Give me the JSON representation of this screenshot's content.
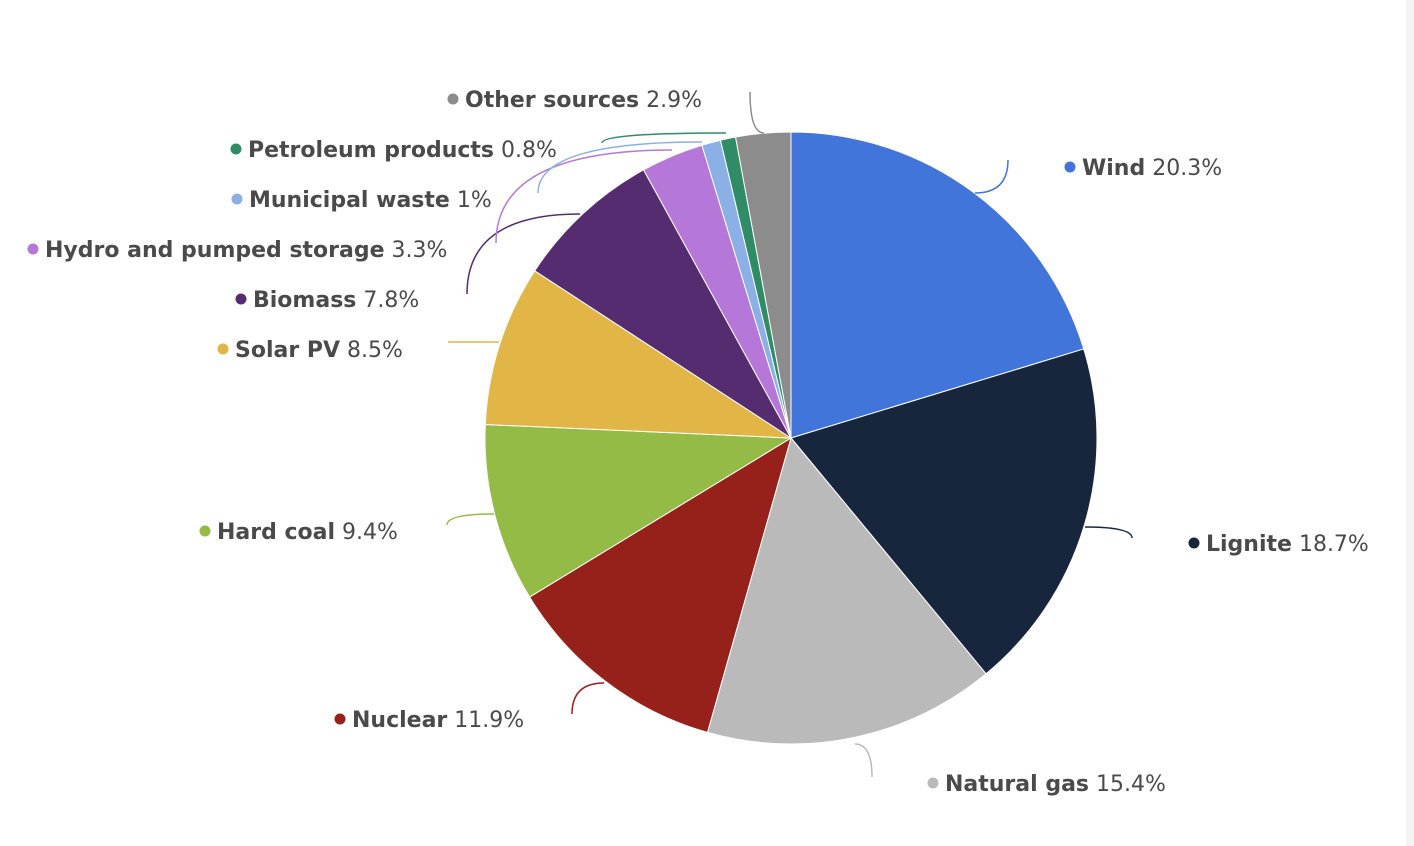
{
  "chart_data": {
    "type": "pie",
    "start_angle_deg": 0,
    "direction": "clockwise",
    "slices": [
      {
        "name": "Wind",
        "value": 20.3,
        "label": "20.3%",
        "color": "#4275d9"
      },
      {
        "name": "Lignite",
        "value": 18.7,
        "label": "18.7%",
        "color": "#17263d"
      },
      {
        "name": "Natural gas",
        "value": 15.4,
        "label": "15.4%",
        "color": "#bababa"
      },
      {
        "name": "Nuclear",
        "value": 11.9,
        "label": "11.9%",
        "color": "#96201a"
      },
      {
        "name": "Hard coal",
        "value": 9.4,
        "label": "9.4%",
        "color": "#94bb45"
      },
      {
        "name": "Solar PV",
        "value": 8.5,
        "label": "8.5%",
        "color": "#e2b547"
      },
      {
        "name": "Biomass",
        "value": 7.8,
        "label": "7.8%",
        "color": "#562c70"
      },
      {
        "name": "Hydro and pumped storage",
        "value": 3.3,
        "label": "3.3%",
        "color": "#b678d8"
      },
      {
        "name": "Municipal waste",
        "value": 1,
        "label": "1%",
        "color": "#8bb0e6"
      },
      {
        "name": "Petroleum products",
        "value": 0.8,
        "label": "0.8%",
        "color": "#2f8c67"
      },
      {
        "name": "Other sources",
        "value": 2.9,
        "label": "2.9%",
        "color": "#8c8c8c"
      }
    ]
  }
}
